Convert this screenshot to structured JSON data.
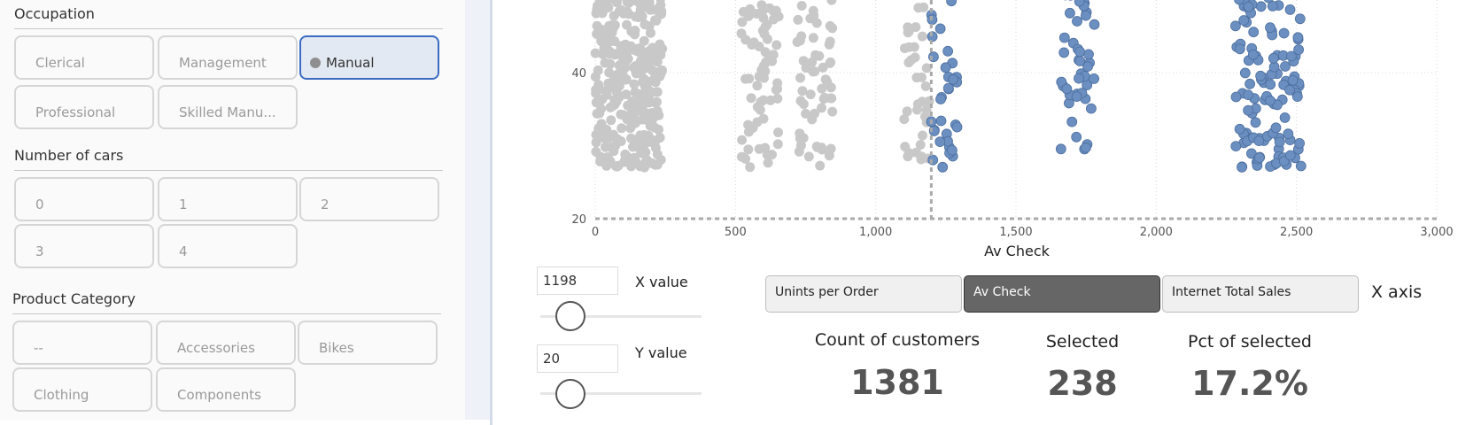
{
  "slicers": {
    "occupation": {
      "title": "Occupation",
      "items": [
        "Clerical",
        "Management",
        "Manual",
        "Professional",
        "Skilled Manu..."
      ],
      "selected": "Manual"
    },
    "cars": {
      "title": "Number of cars",
      "items": [
        "0",
        "1",
        "2",
        "3",
        "4"
      ]
    },
    "product": {
      "title": "Product Category",
      "items": [
        "--",
        "Accessories",
        "Bikes",
        "Clothing",
        "Components"
      ]
    }
  },
  "chart_data": {
    "type": "scatter",
    "xlabel": "Av Check",
    "ylabel": "",
    "x_ticks": [
      "0",
      "500",
      "1,000",
      "1,500",
      "2,000",
      "2,500",
      "3,000"
    ],
    "y_ticks": [
      "20",
      "40"
    ],
    "xlim": [
      0,
      3000
    ],
    "ylim": [
      20,
      60
    ],
    "threshold_x": 1198,
    "threshold_y": 20,
    "colors": {
      "unselected": "#c8c8c8",
      "selected": "#6b8fc0",
      "threshold": "#aaaaaa",
      "grid": "#d9d9d9"
    },
    "clusters": [
      {
        "x_min": 0,
        "x_max": 240,
        "y_min": 27,
        "y_max": 60,
        "count": 420,
        "selected": false
      },
      {
        "x_min": 520,
        "x_max": 660,
        "y_min": 27,
        "y_max": 60,
        "count": 90,
        "selected": false
      },
      {
        "x_min": 720,
        "x_max": 850,
        "y_min": 27,
        "y_max": 60,
        "count": 80,
        "selected": false
      },
      {
        "x_min": 1100,
        "x_max": 1198,
        "y_min": 28,
        "y_max": 60,
        "count": 50,
        "selected": false
      },
      {
        "x_min": 1190,
        "x_max": 1290,
        "y_min": 27,
        "y_max": 60,
        "count": 45,
        "selected": true
      },
      {
        "x_min": 1660,
        "x_max": 1780,
        "y_min": 29,
        "y_max": 60,
        "count": 60,
        "selected": true
      },
      {
        "x_min": 2280,
        "x_max": 2520,
        "y_min": 27,
        "y_max": 60,
        "count": 170,
        "selected": true
      }
    ]
  },
  "controls": {
    "x_value": "1198",
    "x_label": "X value",
    "y_value": "20",
    "y_label": "Y value",
    "axis_buttons": [
      "Unints per Order",
      "Av Check",
      "Internet Total Sales"
    ],
    "axis_active": "Av Check",
    "axis_label": "X axis"
  },
  "kpis": {
    "count_title": "Count of customers",
    "count_value": "1381",
    "selected_title": "Selected",
    "selected_value": "238",
    "pct_title": "Pct of selected",
    "pct_value": "17.2%"
  }
}
